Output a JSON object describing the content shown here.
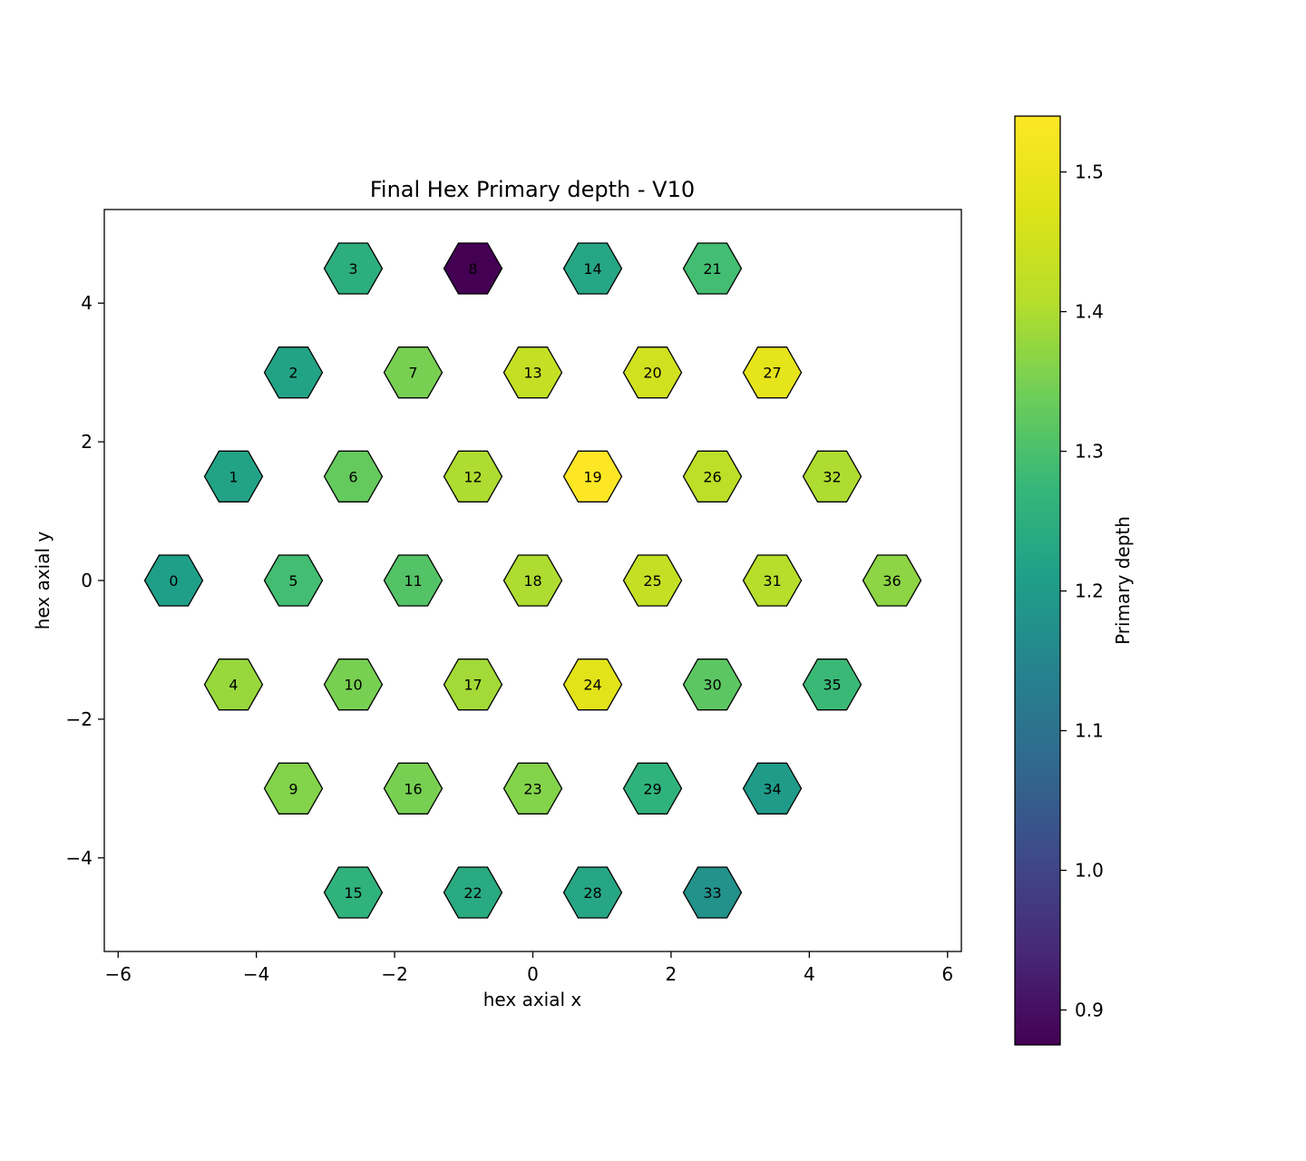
{
  "chart_data": {
    "type": "hex-map",
    "title": "Final Hex Primary depth - V10",
    "xlabel": "hex axial x",
    "ylabel": "hex axial y",
    "xlim": [
      -6.2,
      6.2
    ],
    "ylim": [
      -5.35,
      5.35
    ],
    "xticks": [
      -6,
      -4,
      -2,
      0,
      2,
      4,
      6
    ],
    "yticks": [
      -4,
      -2,
      0,
      2,
      4
    ],
    "xtick_labels": [
      "−6",
      "−4",
      "−2",
      "0",
      "2",
      "4",
      "6"
    ],
    "ytick_labels": [
      "−4",
      "−2",
      "0",
      "2",
      "4"
    ],
    "colorbar": {
      "label": "Primary depth",
      "vmin": 0.875,
      "vmax": 1.54,
      "ticks": [
        0.9,
        1.0,
        1.1,
        1.2,
        1.3,
        1.4,
        1.5
      ],
      "tick_labels": [
        "0.9",
        "1.0",
        "1.1",
        "1.2",
        "1.3",
        "1.4",
        "1.5"
      ],
      "colormap": "viridis"
    },
    "hexes": [
      {
        "id": "0",
        "x": -5.196,
        "y": 0.0,
        "value": 1.21
      },
      {
        "id": "1",
        "x": -4.33,
        "y": 1.5,
        "value": 1.22
      },
      {
        "id": "2",
        "x": -3.464,
        "y": 3.0,
        "value": 1.22
      },
      {
        "id": "3",
        "x": -2.598,
        "y": 4.5,
        "value": 1.25
      },
      {
        "id": "4",
        "x": -4.33,
        "y": -1.5,
        "value": 1.38
      },
      {
        "id": "5",
        "x": -3.464,
        "y": 0.0,
        "value": 1.29
      },
      {
        "id": "6",
        "x": -2.598,
        "y": 1.5,
        "value": 1.33
      },
      {
        "id": "7",
        "x": -1.732,
        "y": 3.0,
        "value": 1.35
      },
      {
        "id": "8",
        "x": -0.866,
        "y": 4.5,
        "value": 0.875
      },
      {
        "id": "9",
        "x": -3.464,
        "y": -3.0,
        "value": 1.36
      },
      {
        "id": "10",
        "x": -2.598,
        "y": -1.5,
        "value": 1.35
      },
      {
        "id": "11",
        "x": -1.732,
        "y": 0.0,
        "value": 1.31
      },
      {
        "id": "12",
        "x": -0.866,
        "y": 1.5,
        "value": 1.4
      },
      {
        "id": "13",
        "x": 0.0,
        "y": 3.0,
        "value": 1.43
      },
      {
        "id": "14",
        "x": 0.866,
        "y": 4.5,
        "value": 1.23
      },
      {
        "id": "15",
        "x": -2.598,
        "y": -4.5,
        "value": 1.26
      },
      {
        "id": "16",
        "x": -1.732,
        "y": -3.0,
        "value": 1.35
      },
      {
        "id": "17",
        "x": -0.866,
        "y": -1.5,
        "value": 1.39
      },
      {
        "id": "18",
        "x": 0.0,
        "y": 0.0,
        "value": 1.4
      },
      {
        "id": "19",
        "x": 0.866,
        "y": 1.5,
        "value": 1.54
      },
      {
        "id": "20",
        "x": 1.732,
        "y": 3.0,
        "value": 1.45
      },
      {
        "id": "21",
        "x": 2.598,
        "y": 4.5,
        "value": 1.29
      },
      {
        "id": "22",
        "x": -0.866,
        "y": -4.5,
        "value": 1.24
      },
      {
        "id": "23",
        "x": 0.0,
        "y": -3.0,
        "value": 1.36
      },
      {
        "id": "24",
        "x": 0.866,
        "y": -1.5,
        "value": 1.48
      },
      {
        "id": "25",
        "x": 1.732,
        "y": 0.0,
        "value": 1.43
      },
      {
        "id": "26",
        "x": 2.598,
        "y": 1.5,
        "value": 1.42
      },
      {
        "id": "27",
        "x": 3.464,
        "y": 3.0,
        "value": 1.49
      },
      {
        "id": "28",
        "x": 0.866,
        "y": -4.5,
        "value": 1.23
      },
      {
        "id": "29",
        "x": 1.732,
        "y": -3.0,
        "value": 1.26
      },
      {
        "id": "30",
        "x": 2.598,
        "y": -1.5,
        "value": 1.32
      },
      {
        "id": "31",
        "x": 3.464,
        "y": 0.0,
        "value": 1.41
      },
      {
        "id": "32",
        "x": 4.33,
        "y": 1.5,
        "value": 1.4
      },
      {
        "id": "33",
        "x": 2.598,
        "y": -4.5,
        "value": 1.18
      },
      {
        "id": "34",
        "x": 3.464,
        "y": -3.0,
        "value": 1.2
      },
      {
        "id": "35",
        "x": 4.33,
        "y": -1.5,
        "value": 1.28
      },
      {
        "id": "36",
        "x": 5.196,
        "y": 0.0,
        "value": 1.37
      }
    ]
  }
}
